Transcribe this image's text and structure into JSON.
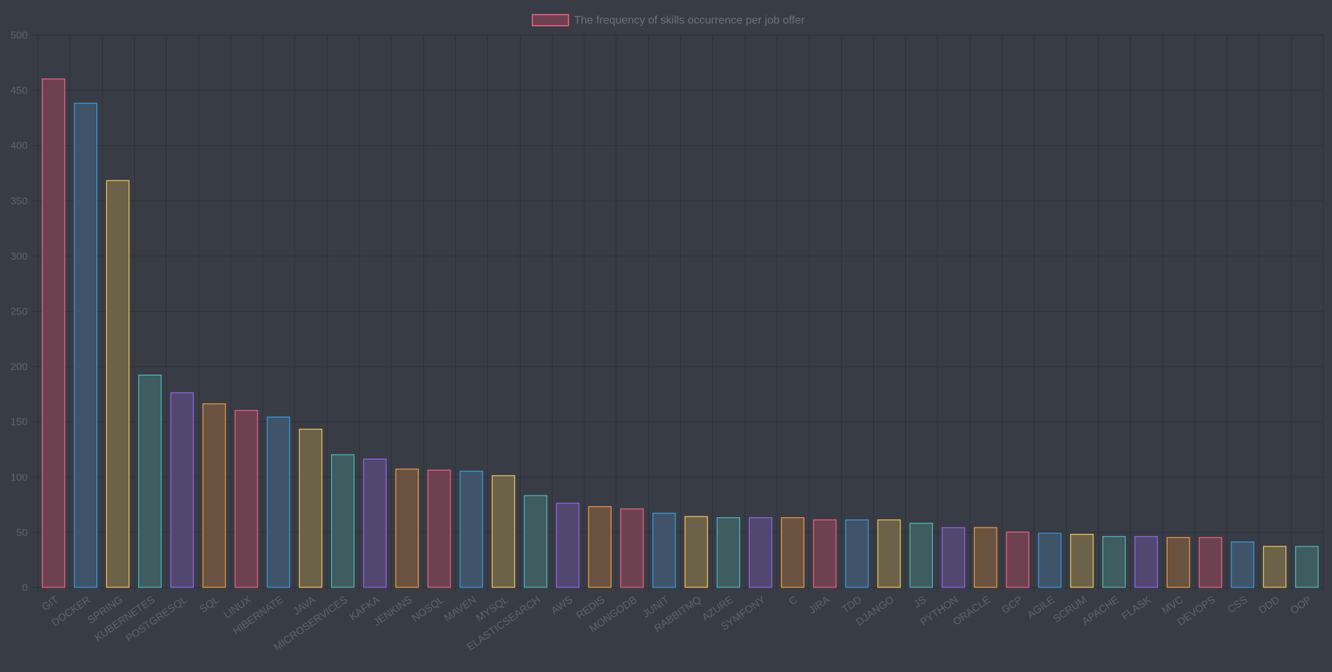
{
  "chart_data": {
    "type": "bar",
    "title": "",
    "xlabel": "",
    "ylabel": "",
    "ylim": [
      0,
      500
    ],
    "yticks": [
      0,
      50,
      100,
      150,
      200,
      250,
      300,
      350,
      400,
      450,
      500
    ],
    "grid": true,
    "legend_position": "top-center",
    "categories": [
      "GIT",
      "DOCKER",
      "SPRING",
      "KUBERNETES",
      "POSTGRESQL",
      "SQL",
      "LINUX",
      "HIBERNATE",
      "JAVA",
      "MICROSERVICES",
      "KAFKA",
      "JENKINS",
      "NOSQL",
      "MAVEN",
      "MYSQL",
      "ELASTICSEARCH",
      "AWS",
      "REDIS",
      "MONGODB",
      "JUNIT",
      "RABBITMQ",
      "AZURE",
      "SYMFONY",
      "C",
      "JIRA",
      "TDD",
      "DJANGO",
      "JS",
      "PYTHON",
      "ORACLE",
      "GCP",
      "AGILE",
      "SCRUM",
      "APACHE",
      "FLASK",
      "MVC",
      "DEVOPS",
      "CSS",
      "DDD",
      "OOP"
    ],
    "series": [
      {
        "name": "The frequency of skills occurrence per job offer",
        "values": [
          460,
          438,
          368,
          192,
          176,
          166,
          160,
          154,
          143,
          120,
          116,
          107,
          106,
          105,
          101,
          83,
          76,
          73,
          71,
          67,
          64,
          63,
          63,
          63,
          61,
          61,
          61,
          58,
          54,
          54,
          50,
          49,
          48,
          46,
          46,
          45,
          45,
          41,
          37,
          37
        ]
      }
    ],
    "colors": {
      "background": "#383c45",
      "grid": "#2e3139",
      "tick_text": "#5f636b",
      "legend_text": "#6e727a",
      "palette_borders": [
        "#ff6384",
        "#36a2eb",
        "#ffce56",
        "#4bc0c0",
        "#9966ff",
        "#ff9f40"
      ],
      "palette_fills": [
        "#6d4150",
        "#3f5369",
        "#6b6249",
        "#3f5c60",
        "#52476e",
        "#6a5240"
      ]
    }
  }
}
